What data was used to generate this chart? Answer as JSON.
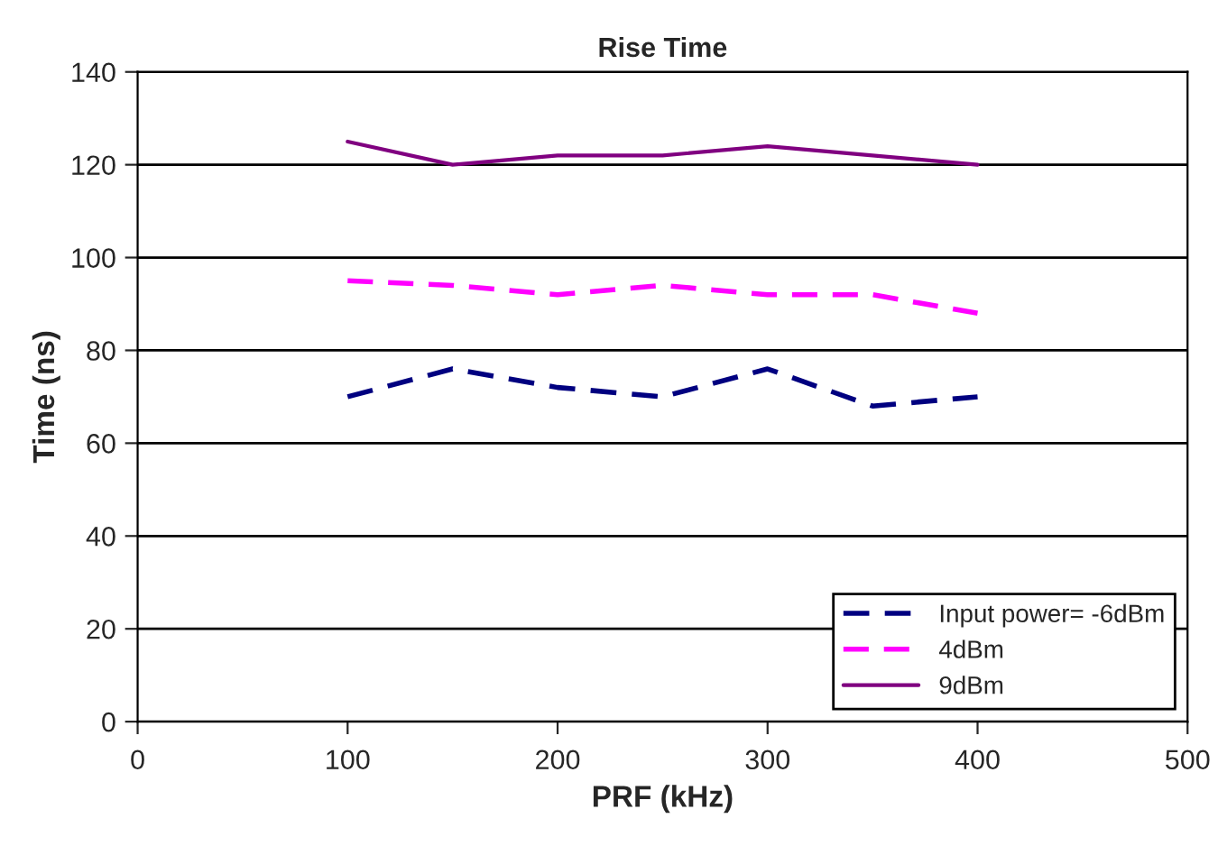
{
  "chart_data": {
    "type": "line",
    "title": "Rise Time",
    "xlabel": "PRF (kHz)",
    "ylabel": "Time (ns)",
    "x": [
      100,
      150,
      200,
      250,
      300,
      350,
      400
    ],
    "series": [
      {
        "name": "Input power= -6dBm",
        "color": "#000080",
        "line_style": "dotted",
        "values": [
          70,
          76,
          72,
          70,
          76,
          68,
          70
        ]
      },
      {
        "name": "4dBm",
        "color": "#ff00ff",
        "line_style": "dashed",
        "values": [
          95,
          94,
          92,
          94,
          92,
          92,
          88
        ]
      },
      {
        "name": "9dBm",
        "color": "#800080",
        "line_style": "solid",
        "values": [
          125,
          120,
          122,
          122,
          124,
          122,
          120
        ]
      }
    ],
    "xlim": [
      0,
      500
    ],
    "xticks": [
      0,
      100,
      200,
      300,
      400,
      500
    ],
    "ylim": [
      0,
      140
    ],
    "yticks": [
      0,
      20,
      40,
      60,
      80,
      100,
      120,
      140
    ],
    "grid": "y",
    "legend": "bottom right",
    "marker": "none"
  }
}
